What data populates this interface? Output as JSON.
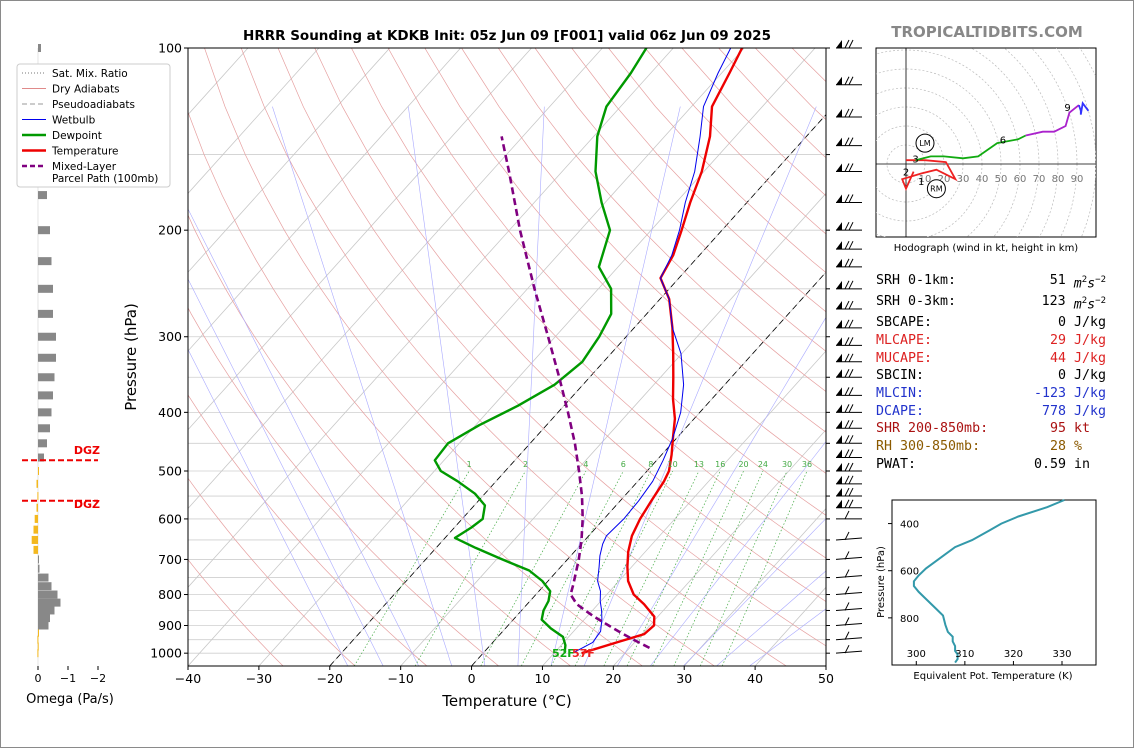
{
  "title": "HRRR Sounding at KDKB Init: 05z Jun 09 [F001] valid 06z Jun 09 2025",
  "watermark": "TROPICALTIDBITS.COM",
  "axes": {
    "xlabel": "Temperature (°C)",
    "ylabel": "Pressure (hPa)",
    "xlim": [
      -40,
      50
    ],
    "ylim": [
      1050,
      100
    ],
    "xticks": [
      "−40",
      "−30",
      "−20",
      "−10",
      "0",
      "10",
      "20",
      "30",
      "40",
      "50"
    ],
    "yticks": [
      "100",
      "200",
      "300",
      "400",
      "500",
      "600",
      "700",
      "800",
      "900",
      "1000"
    ]
  },
  "legend": {
    "items": [
      {
        "label": "Sat. Mix. Ratio",
        "color": "#777777",
        "style": "dotted"
      },
      {
        "label": "Dry Adiabats",
        "color": "#e08a8a",
        "style": "solid"
      },
      {
        "label": "Pseudoadiabats",
        "color": "#999999",
        "style": "dashed"
      },
      {
        "label": "Wetbulb",
        "color": "#0000ee",
        "style": "solid"
      },
      {
        "label": "Dewpoint",
        "color": "#009900",
        "style": "solid"
      },
      {
        "label": "Temperature",
        "color": "#ee0000",
        "style": "solid"
      },
      {
        "label": "Mixed-Layer",
        "label2": "Parcel Path (100mb)",
        "color": "#800080",
        "style": "dashed"
      }
    ]
  },
  "mixing_ratio_labels": [
    "1",
    "2",
    "4",
    "6",
    "8",
    "10",
    "13",
    "16",
    "20",
    "24",
    "30",
    "36"
  ],
  "surface": {
    "dewpoint_label": "52F",
    "temp_label": "57F"
  },
  "omega": {
    "xlabel": "Omega (Pa/s)",
    "ticks": [
      "0",
      "−1",
      "−2"
    ],
    "dgz_label": "DGZ"
  },
  "hodograph": {
    "caption": "Hodograph (wind in kt, height in km)",
    "ring_labels": [
      "10",
      "20",
      "30",
      "40",
      "50",
      "60",
      "70",
      "80",
      "90"
    ],
    "height_labels": [
      "1",
      "2",
      "3",
      "6",
      "9"
    ],
    "lm": "LM",
    "rm": "RM"
  },
  "theta_e": {
    "xlabel": "Equivalent Pot. Temperature (K)",
    "ylabel": "Pressure (hPa)",
    "xticks": [
      "300",
      "310",
      "320",
      "330"
    ],
    "yticks": [
      "400",
      "600",
      "800"
    ]
  },
  "stats": [
    {
      "label": "SRH 0-1km:",
      "value": "51",
      "unit": "m2s-2",
      "color": "#000000"
    },
    {
      "label": "SRH 0-3km:",
      "value": "123",
      "unit": "m2s-2",
      "color": "#000000"
    },
    {
      "label": "SBCAPE:",
      "value": "0",
      "unit": "J/kg",
      "color": "#000000"
    },
    {
      "label": "MLCAPE:",
      "value": "29",
      "unit": "J/kg",
      "color": "#dd2222"
    },
    {
      "label": "MUCAPE:",
      "value": "44",
      "unit": "J/kg",
      "color": "#dd2222"
    },
    {
      "label": "SBCIN:",
      "value": "0",
      "unit": "J/kg",
      "color": "#000000"
    },
    {
      "label": "MLCIN:",
      "value": "-123",
      "unit": "J/kg",
      "color": "#2233cc"
    },
    {
      "label": "DCAPE:",
      "value": "778",
      "unit": "J/kg",
      "color": "#2233cc"
    },
    {
      "label": "SHR 200-850mb:",
      "value": "95",
      "unit": "kt",
      "color": "#aa1111"
    },
    {
      "label": "RH 300-850mb:",
      "value": "28",
      "unit": "%",
      "color": "#8b5a00"
    },
    {
      "label": "PWAT:",
      "value": "0.59",
      "unit": "in",
      "color": "#000000"
    }
  ],
  "chart_data": [
    {
      "type": "line",
      "title": "HRRR Sounding at KDKB Init: 05z Jun 09 [F001] valid 06z Jun 09 2025",
      "xlabel": "Temperature (°C)",
      "ylabel": "Pressure (hPa)",
      "xlim": [
        -40,
        50
      ],
      "ylim": [
        1050,
        100
      ],
      "grid": true,
      "legend": "top-left",
      "series": [
        {
          "name": "Temperature",
          "color": "#ee0000",
          "points": [
            [
              1000,
              13.9
            ],
            [
              960,
              17.5
            ],
            [
              930,
              20.3
            ],
            [
              900,
              20.6
            ],
            [
              870,
              19.5
            ],
            [
              830,
              16.5
            ],
            [
              800,
              13.8
            ],
            [
              760,
              11.3
            ],
            [
              720,
              9.4
            ],
            [
              680,
              7.6
            ],
            [
              640,
              6.1
            ],
            [
              600,
              5.1
            ],
            [
              560,
              4.4
            ],
            [
              520,
              3.7
            ],
            [
              500,
              3.1
            ],
            [
              470,
              1.4
            ],
            [
              440,
              -0.6
            ],
            [
              410,
              -2.7
            ],
            [
              380,
              -5.5
            ],
            [
              350,
              -8.2
            ],
            [
              320,
              -11.2
            ],
            [
              290,
              -14.6
            ],
            [
              260,
              -18.7
            ],
            [
              240,
              -22.6
            ],
            [
              220,
              -23.7
            ],
            [
              200,
              -25.7
            ],
            [
              180,
              -28.0
            ],
            [
              160,
              -30.3
            ],
            [
              140,
              -33.6
            ],
            [
              125,
              -37.1
            ],
            [
              110,
              -38.9
            ],
            [
              100,
              -40.3
            ]
          ]
        },
        {
          "name": "Dewpoint",
          "color": "#009900",
          "points": [
            [
              1000,
              11.5
            ],
            [
              970,
              10.6
            ],
            [
              940,
              9.2
            ],
            [
              910,
              6.4
            ],
            [
              880,
              4.0
            ],
            [
              850,
              3.1
            ],
            [
              820,
              2.6
            ],
            [
              790,
              1.6
            ],
            [
              760,
              -0.8
            ],
            [
              730,
              -4.0
            ],
            [
              700,
              -9.2
            ],
            [
              670,
              -14.4
            ],
            [
              645,
              -18.6
            ],
            [
              620,
              -17.6
            ],
            [
              600,
              -17.1
            ],
            [
              570,
              -18.5
            ],
            [
              545,
              -21.4
            ],
            [
              520,
              -25.4
            ],
            [
              500,
              -29.1
            ],
            [
              480,
              -31.3
            ],
            [
              450,
              -31.6
            ],
            [
              420,
              -29.5
            ],
            [
              390,
              -26.5
            ],
            [
              360,
              -24.0
            ],
            [
              330,
              -23.0
            ],
            [
              300,
              -23.8
            ],
            [
              275,
              -25.0
            ],
            [
              250,
              -28.2
            ],
            [
              230,
              -32.7
            ],
            [
              200,
              -35.8
            ],
            [
              180,
              -40.5
            ],
            [
              160,
              -45.3
            ],
            [
              140,
              -49.5
            ],
            [
              125,
              -52.0
            ],
            [
              110,
              -52.8
            ],
            [
              100,
              -53.8
            ]
          ]
        },
        {
          "name": "Wetbulb",
          "color": "#0000ee",
          "points": [
            [
              1000,
              12.6
            ],
            [
              960,
              14.1
            ],
            [
              920,
              13.8
            ],
            [
              880,
              12.5
            ],
            [
              850,
              11.3
            ],
            [
              820,
              9.9
            ],
            [
              790,
              8.7
            ],
            [
              760,
              7.0
            ],
            [
              720,
              5.4
            ],
            [
              690,
              4.1
            ],
            [
              660,
              3.0
            ],
            [
              640,
              2.5
            ],
            [
              600,
              2.8
            ],
            [
              560,
              2.6
            ],
            [
              520,
              2.1
            ],
            [
              480,
              0.9
            ],
            [
              440,
              -0.6
            ],
            [
              400,
              -2.7
            ],
            [
              360,
              -5.8
            ],
            [
              320,
              -10.1
            ],
            [
              290,
              -14.6
            ],
            [
              260,
              -18.7
            ],
            [
              240,
              -22.6
            ],
            [
              220,
              -23.9
            ],
            [
              200,
              -26.0
            ],
            [
              180,
              -28.7
            ],
            [
              160,
              -31.3
            ],
            [
              140,
              -35.0
            ],
            [
              125,
              -38.3
            ],
            [
              110,
              -40.5
            ],
            [
              100,
              -41.9
            ]
          ]
        },
        {
          "name": "Mixed-Layer Parcel Path (100mb)",
          "color": "#800080",
          "style": "dashed",
          "points": [
            [
              980,
              22.8
            ],
            [
              950,
              19.5
            ],
            [
              920,
              16.3
            ],
            [
              900,
              14.2
            ],
            [
              870,
              11.0
            ],
            [
              850,
              9.0
            ],
            [
              830,
              7.0
            ],
            [
              800,
              4.9
            ],
            [
              770,
              4.0
            ],
            [
              740,
              3.0
            ],
            [
              700,
              1.6
            ],
            [
              650,
              -0.5
            ],
            [
              600,
              -3.0
            ],
            [
              550,
              -6.0
            ],
            [
              500,
              -9.6
            ],
            [
              450,
              -13.7
            ],
            [
              400,
              -18.6
            ],
            [
              350,
              -24.3
            ],
            [
              300,
              -31.0
            ],
            [
              250,
              -39.0
            ],
            [
              200,
              -48.5
            ],
            [
              160,
              -57.5
            ],
            [
              140,
              -63.0
            ]
          ]
        }
      ]
    },
    {
      "type": "bar",
      "title": "",
      "xlabel": "Omega (Pa/s)",
      "ylabel": "",
      "xlim": [
        0.5,
        -2.2
      ],
      "pressure": [
        1000,
        975,
        950,
        925,
        900,
        875,
        850,
        825,
        800,
        775,
        750,
        725,
        700,
        675,
        650,
        625,
        600,
        575,
        550,
        525,
        500,
        475,
        450,
        425,
        400,
        375,
        350,
        325,
        300,
        275,
        250,
        225,
        200,
        175,
        150,
        125,
        100
      ],
      "values": [
        0.02,
        0.01,
        0.02,
        0.0,
        -0.35,
        -0.4,
        -0.55,
        -0.75,
        -0.65,
        -0.45,
        -0.35,
        -0.05,
        -0.01,
        0.15,
        0.21,
        0.15,
        0.11,
        0.05,
        0.02,
        0.05,
        0.0,
        -0.2,
        -0.3,
        -0.4,
        -0.45,
        -0.5,
        -0.55,
        -0.6,
        -0.6,
        -0.5,
        -0.5,
        -0.45,
        -0.4,
        -0.3,
        -0.25,
        -0.2,
        -0.1
      ],
      "dgz_pressure": [
        480,
        560
      ],
      "dgz_label": "DGZ"
    },
    {
      "type": "scatter",
      "title": "",
      "xlabel": "",
      "ylabel": "",
      "xlim": [
        -10,
        97
      ],
      "ylim": [
        -40,
        60
      ],
      "series": [
        {
          "name": "",
          "color": "#ee2222",
          "points": [
            [
              4,
              -4
            ],
            [
              0,
              -13
            ],
            [
              -2,
              -8
            ],
            [
              8,
              -5
            ],
            [
              16,
              -3
            ],
            [
              26,
              -8
            ],
            [
              21,
              1
            ],
            [
              10,
              2
            ],
            [
              0,
              2
            ]
          ]
        },
        {
          "name": "",
          "color": "#11aa11",
          "points": [
            [
              5,
              2
            ],
            [
              13,
              4
            ],
            [
              20,
              4
            ],
            [
              30,
              3
            ],
            [
              38,
              4
            ],
            [
              48,
              11
            ],
            [
              59,
              13
            ],
            [
              63,
              15
            ]
          ]
        },
        {
          "name": "",
          "color": "#aa22cc",
          "points": [
            [
              63,
              15
            ],
            [
              72,
              17
            ],
            [
              78,
              17
            ],
            [
              84,
              20
            ],
            [
              86,
              27
            ],
            [
              91,
              31
            ]
          ]
        },
        {
          "name": "",
          "color": "#3333ff",
          "points": [
            [
              91,
              31
            ],
            [
              92,
              28
            ],
            [
              92,
              26
            ],
            [
              93,
              32
            ],
            [
              96,
              28
            ]
          ]
        }
      ],
      "labels": [
        {
          "text": "1",
          "x": 8,
          "y": -9
        },
        {
          "text": "2",
          "x": 0,
          "y": -4
        },
        {
          "text": "3",
          "x": 5,
          "y": 3
        },
        {
          "text": "6",
          "x": 51,
          "y": 13
        },
        {
          "text": "9",
          "x": 85,
          "y": 30
        }
      ],
      "lm": [
        10,
        11
      ],
      "rm": [
        16,
        -13
      ]
    },
    {
      "type": "line",
      "title": "",
      "xlabel": "Equivalent Pot. Temperature (K)",
      "ylabel": "Pressure (hPa)",
      "xlim": [
        295,
        337
      ],
      "ylim": [
        1000,
        300
      ],
      "series": [
        {
          "name": "",
          "color": "#3399aa",
          "points": [
            [
              300,
              330.5
            ],
            [
              330,
              327
            ],
            [
              370,
              321
            ],
            [
              400,
              317.5
            ],
            [
              430,
              315
            ],
            [
              470,
              311.5
            ],
            [
              500,
              308
            ],
            [
              530,
              306
            ],
            [
              560,
              304
            ],
            [
              590,
              302
            ],
            [
              620,
              300.5
            ],
            [
              645,
              299.5
            ],
            [
              665,
              299.5
            ],
            [
              690,
              300.5
            ],
            [
              720,
              302
            ],
            [
              760,
              304
            ],
            [
              790,
              305.5
            ],
            [
              830,
              306
            ],
            [
              860,
              306.5
            ],
            [
              880,
              307.5
            ],
            [
              900,
              307.5
            ],
            [
              920,
              308
            ],
            [
              940,
              308
            ],
            [
              955,
              308.5
            ],
            [
              975,
              308.5
            ],
            [
              990,
              308
            ]
          ]
        }
      ]
    }
  ]
}
